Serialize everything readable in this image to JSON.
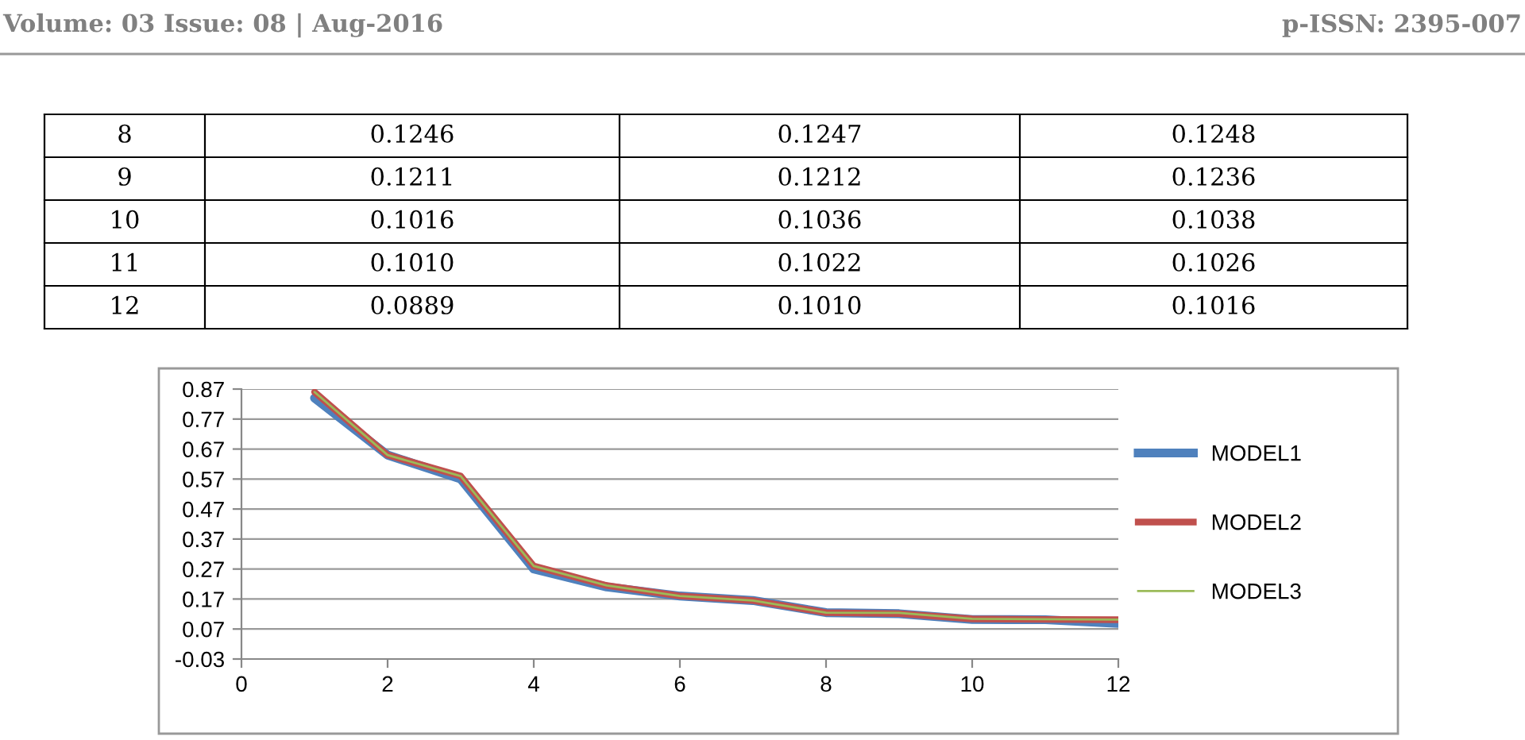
{
  "chart_data": {
    "type": "line",
    "annotations": [
      "Volume: 03 Issue: 08 | Aug-2016",
      "p-ISSN: 2395-007",
      "8",
      "0.1246",
      "0.1247",
      "0.1248",
      "9",
      "0.1211",
      "0.1212",
      "0.1236",
      "10",
      "0.1016",
      "0.1036",
      "0.1038",
      "11",
      "0.1010",
      "0.1022",
      "0.1026",
      "12",
      "0.0889",
      "0.1010",
      "0.1016"
    ],
    "x": [
      1,
      2,
      3,
      4,
      5,
      6,
      7,
      8,
      9,
      10,
      11,
      12
    ],
    "series": [
      {
        "name": "MODEL1",
        "color": "#4f81bd",
        "values": [
          0.84,
          0.65,
          0.57,
          0.27,
          0.21,
          0.18,
          0.165,
          0.1246,
          0.1211,
          0.1016,
          0.101,
          0.0889
        ]
      },
      {
        "name": "MODEL2",
        "color": "#c0504d",
        "values": [
          0.86,
          0.65,
          0.58,
          0.28,
          0.215,
          0.18,
          0.165,
          0.1247,
          0.1212,
          0.1036,
          0.1022,
          0.101
        ]
      },
      {
        "name": "MODEL3",
        "color": "#9bbb59",
        "values": [
          0.86,
          0.65,
          0.58,
          0.28,
          0.215,
          0.18,
          0.165,
          0.1248,
          0.1236,
          0.1038,
          0.1026,
          0.1016
        ]
      }
    ],
    "xlim": [
      0,
      12
    ],
    "xticks": [
      0,
      2,
      4,
      6,
      8,
      10,
      12
    ],
    "ylim": [
      -0.03,
      0.87
    ],
    "yticks": [
      -0.03,
      0.07,
      0.17,
      0.27,
      0.37,
      0.47,
      0.57,
      0.67,
      0.77,
      0.87
    ],
    "grid": "y",
    "legend": "right",
    "marker": "none",
    "line_style": "solid"
  }
}
